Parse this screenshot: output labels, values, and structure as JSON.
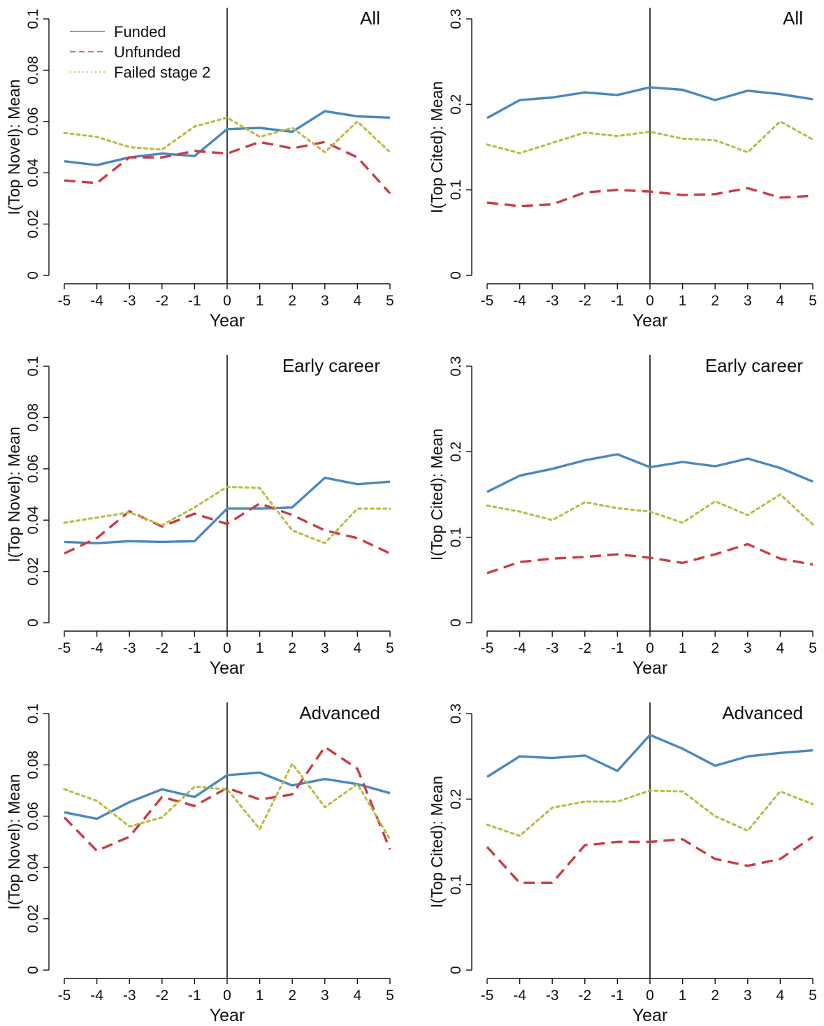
{
  "chart_data": [
    {
      "type": "line",
      "title": "All",
      "xlabel": "Year",
      "ylabel": "I(Top Novel): Mean",
      "x": [
        -5,
        -4,
        -3,
        -2,
        -1,
        0,
        1,
        2,
        3,
        4,
        5
      ],
      "ylim": [
        0,
        0.1
      ],
      "yticks": [
        0,
        0.02,
        0.04,
        0.06,
        0.08,
        0.1
      ],
      "ytick_labels": [
        "0",
        "0.02",
        "0.04",
        "0.06",
        "0.08",
        "0.1"
      ],
      "vline_x": 0,
      "legend": "top-left",
      "series": [
        {
          "name": "Funded",
          "style": "solid",
          "color": "#4a88c0",
          "values": [
            0.0445,
            0.043,
            0.046,
            0.0475,
            0.0465,
            0.057,
            0.0575,
            0.056,
            0.064,
            0.062,
            0.0615
          ]
        },
        {
          "name": "Unfunded",
          "style": "dashed",
          "color": "#c83c48",
          "values": [
            0.037,
            0.036,
            0.046,
            0.046,
            0.0485,
            0.0475,
            0.052,
            0.0495,
            0.052,
            0.046,
            0.032
          ]
        },
        {
          "name": "Failed stage 2",
          "style": "dotted",
          "color": "#b9ba3e",
          "values": [
            0.0555,
            0.054,
            0.05,
            0.049,
            0.058,
            0.0615,
            0.054,
            0.0575,
            0.048,
            0.06,
            0.048
          ]
        }
      ]
    },
    {
      "type": "line",
      "title": "All",
      "xlabel": "Year",
      "ylabel": "I(Top Cited): Mean",
      "x": [
        -5,
        -4,
        -3,
        -2,
        -1,
        0,
        1,
        2,
        3,
        4,
        5
      ],
      "ylim": [
        0,
        0.3
      ],
      "yticks": [
        0,
        0.1,
        0.2,
        0.3
      ],
      "ytick_labels": [
        "0",
        "0.1",
        "0.2",
        "0.3"
      ],
      "vline_x": 0,
      "series": [
        {
          "name": "Funded",
          "style": "solid",
          "color": "#4a88c0",
          "values": [
            0.184,
            0.205,
            0.208,
            0.214,
            0.211,
            0.22,
            0.217,
            0.205,
            0.216,
            0.212,
            0.206
          ]
        },
        {
          "name": "Unfunded",
          "style": "dashed",
          "color": "#c83c48",
          "values": [
            0.085,
            0.081,
            0.083,
            0.097,
            0.1,
            0.098,
            0.094,
            0.095,
            0.102,
            0.091,
            0.093
          ]
        },
        {
          "name": "Failed stage 2",
          "style": "dotted",
          "color": "#b9ba3e",
          "values": [
            0.153,
            0.143,
            0.155,
            0.167,
            0.163,
            0.168,
            0.16,
            0.158,
            0.144,
            0.18,
            0.159
          ]
        }
      ]
    },
    {
      "type": "line",
      "title": "Early career",
      "xlabel": "Year",
      "ylabel": "I(Top Novel): Mean",
      "x": [
        -5,
        -4,
        -3,
        -2,
        -1,
        0,
        1,
        2,
        3,
        4,
        5
      ],
      "ylim": [
        0,
        0.1
      ],
      "yticks": [
        0,
        0.02,
        0.04,
        0.06,
        0.08,
        0.1
      ],
      "ytick_labels": [
        "0",
        "0.02",
        "0.04",
        "0.06",
        "0.08",
        "0.1"
      ],
      "vline_x": 0,
      "series": [
        {
          "name": "Funded",
          "style": "solid",
          "color": "#4a88c0",
          "values": [
            0.0315,
            0.031,
            0.0318,
            0.0315,
            0.0318,
            0.0445,
            0.0445,
            0.045,
            0.0565,
            0.054,
            0.055
          ]
        },
        {
          "name": "Unfunded",
          "style": "dashed",
          "color": "#c83c48",
          "values": [
            0.027,
            0.033,
            0.0435,
            0.0375,
            0.0425,
            0.0385,
            0.0465,
            0.042,
            0.036,
            0.033,
            0.027
          ]
        },
        {
          "name": "Failed stage 2",
          "style": "dotted",
          "color": "#b9ba3e",
          "values": [
            0.039,
            0.041,
            0.043,
            0.038,
            0.045,
            0.053,
            0.0525,
            0.036,
            0.031,
            0.0445,
            0.0445
          ]
        }
      ]
    },
    {
      "type": "line",
      "title": "Early career",
      "xlabel": "Year",
      "ylabel": "I(Top Cited): Mean",
      "x": [
        -5,
        -4,
        -3,
        -2,
        -1,
        0,
        1,
        2,
        3,
        4,
        5
      ],
      "ylim": [
        0,
        0.3
      ],
      "yticks": [
        0,
        0.1,
        0.2,
        0.3
      ],
      "ytick_labels": [
        "0",
        "0.1",
        "0.2",
        "0.3"
      ],
      "vline_x": 0,
      "series": [
        {
          "name": "Funded",
          "style": "solid",
          "color": "#4a88c0",
          "values": [
            0.153,
            0.172,
            0.18,
            0.19,
            0.197,
            0.182,
            0.188,
            0.183,
            0.192,
            0.181,
            0.165
          ]
        },
        {
          "name": "Unfunded",
          "style": "dashed",
          "color": "#c83c48",
          "values": [
            0.058,
            0.071,
            0.075,
            0.077,
            0.08,
            0.076,
            0.07,
            0.08,
            0.092,
            0.075,
            0.068
          ]
        },
        {
          "name": "Failed stage 2",
          "style": "dotted",
          "color": "#b9ba3e",
          "values": [
            0.137,
            0.13,
            0.12,
            0.141,
            0.134,
            0.13,
            0.117,
            0.142,
            0.126,
            0.15,
            0.115
          ]
        }
      ]
    },
    {
      "type": "line",
      "title": "Advanced",
      "xlabel": "Year",
      "ylabel": "I(Top Novel): Mean",
      "x": [
        -5,
        -4,
        -3,
        -2,
        -1,
        0,
        1,
        2,
        3,
        4,
        5
      ],
      "ylim": [
        0,
        0.1
      ],
      "yticks": [
        0,
        0.02,
        0.04,
        0.06,
        0.08,
        0.1
      ],
      "ytick_labels": [
        "0",
        "0.02",
        "0.04",
        "0.06",
        "0.08",
        "0.1"
      ],
      "vline_x": 0,
      "series": [
        {
          "name": "Funded",
          "style": "solid",
          "color": "#4a88c0",
          "values": [
            0.0615,
            0.059,
            0.0655,
            0.0705,
            0.0675,
            0.076,
            0.077,
            0.072,
            0.0745,
            0.0725,
            0.069
          ]
        },
        {
          "name": "Unfunded",
          "style": "dashed",
          "color": "#c83c48",
          "values": [
            0.0595,
            0.0465,
            0.052,
            0.0675,
            0.064,
            0.071,
            0.0665,
            0.0685,
            0.087,
            0.0785,
            0.047
          ]
        },
        {
          "name": "Failed stage 2",
          "style": "dotted",
          "color": "#b9ba3e",
          "values": [
            0.0705,
            0.066,
            0.056,
            0.0595,
            0.0715,
            0.0705,
            0.055,
            0.0805,
            0.0635,
            0.0725,
            0.051
          ]
        }
      ]
    },
    {
      "type": "line",
      "title": "Advanced",
      "xlabel": "Year",
      "ylabel": "I(Top Cited): Mean",
      "x": [
        -5,
        -4,
        -3,
        -2,
        -1,
        0,
        1,
        2,
        3,
        4,
        5
      ],
      "ylim": [
        0,
        0.3
      ],
      "yticks": [
        0,
        0.1,
        0.2,
        0.3
      ],
      "ytick_labels": [
        "0",
        "0.1",
        "0.2",
        "0.3"
      ],
      "vline_x": 0,
      "series": [
        {
          "name": "Funded",
          "style": "solid",
          "color": "#4a88c0",
          "values": [
            0.226,
            0.25,
            0.248,
            0.251,
            0.233,
            0.275,
            0.259,
            0.239,
            0.25,
            0.254,
            0.257
          ]
        },
        {
          "name": "Unfunded",
          "style": "dashed",
          "color": "#c83c48",
          "values": [
            0.144,
            0.102,
            0.102,
            0.146,
            0.15,
            0.15,
            0.153,
            0.13,
            0.122,
            0.13,
            0.156
          ]
        },
        {
          "name": "Failed stage 2",
          "style": "dotted",
          "color": "#b9ba3e",
          "values": [
            0.17,
            0.157,
            0.19,
            0.197,
            0.197,
            0.21,
            0.209,
            0.18,
            0.163,
            0.209,
            0.194
          ]
        }
      ]
    }
  ]
}
